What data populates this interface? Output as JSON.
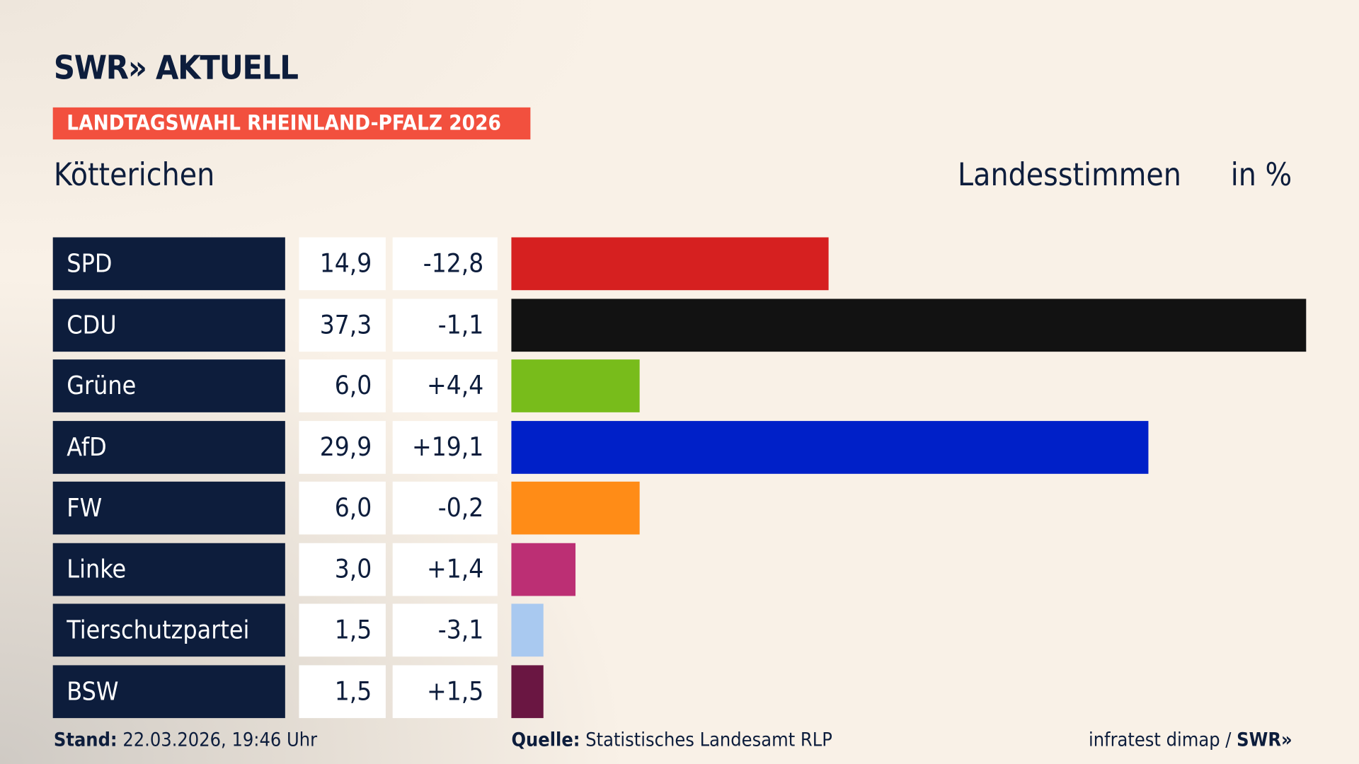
{
  "header": {
    "logo": "SWR» AKTUELL",
    "banner": "LANDTAGSWAHL RHEINLAND-PFALZ 2026",
    "place": "Kötterichen",
    "vote_type": "Landesstimmen",
    "unit": "in %"
  },
  "chart_data": {
    "type": "bar",
    "orientation": "horizontal",
    "xlim": [
      0,
      37.3
    ],
    "categories": [
      "SPD",
      "CDU",
      "Grüne",
      "AfD",
      "FW",
      "Linke",
      "Tierschutzpartei",
      "BSW"
    ],
    "values": [
      14.9,
      37.3,
      6.0,
      29.9,
      6.0,
      3.0,
      1.5,
      1.5
    ],
    "value_labels": [
      "14,9",
      "37,3",
      "6,0",
      "29,9",
      "6,0",
      "3,0",
      "1,5",
      "1,5"
    ],
    "diff_labels": [
      "-12,8",
      "-1,1",
      "+4,4",
      "+19,1",
      "-0,2",
      "+1,4",
      "-3,1",
      "+1,5"
    ],
    "colors": [
      "#d62020",
      "#121212",
      "#78bc1b",
      "#0020c8",
      "#ff8c17",
      "#bc2f74",
      "#a9c9f0",
      "#6a1642"
    ]
  },
  "footer": {
    "stand_label": "Stand:",
    "stand_value": "22.03.2026, 19:46 Uhr",
    "source_label": "Quelle:",
    "source_value": "Statistisches Landesamt RLP",
    "credit": "infratest dimap / ",
    "credit_logo": "SWR»"
  }
}
